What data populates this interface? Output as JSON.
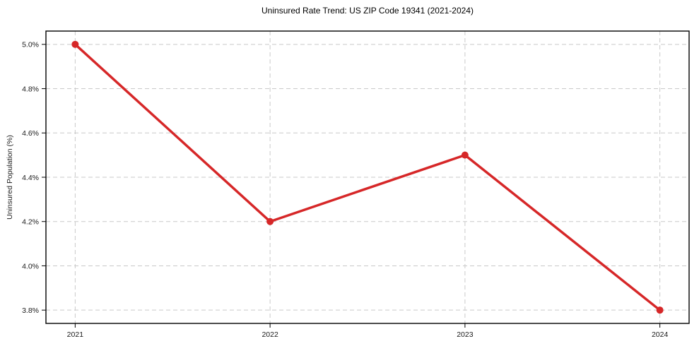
{
  "chart_data": {
    "type": "line",
    "title": "Uninsured Rate Trend: US ZIP Code 19341 (2021-2024)",
    "xlabel": "",
    "ylabel": "Uninsured Population (%)",
    "x": [
      2021,
      2022,
      2023,
      2024
    ],
    "x_tick_labels": [
      "2021",
      "2022",
      "2023",
      "2024"
    ],
    "y_tick_values": [
      3.8,
      4.0,
      4.2,
      4.4,
      4.6,
      4.8,
      5.0
    ],
    "y_tick_labels": [
      "3.8%",
      "4.0%",
      "4.2%",
      "4.4%",
      "4.6%",
      "4.8%",
      "5.0%"
    ],
    "series": [
      {
        "name": "Uninsured Population (%)",
        "values": [
          5.0,
          4.2,
          4.5,
          3.8
        ]
      }
    ],
    "xlim": [
      2020.85,
      2024.15
    ],
    "ylim": [
      3.74,
      5.06
    ],
    "grid": true,
    "legend": "none",
    "line_color": "#d62728",
    "grid_color": "#c9c9c9",
    "frame_color": "#000000",
    "tick_text_color": "#1a1a1a"
  }
}
